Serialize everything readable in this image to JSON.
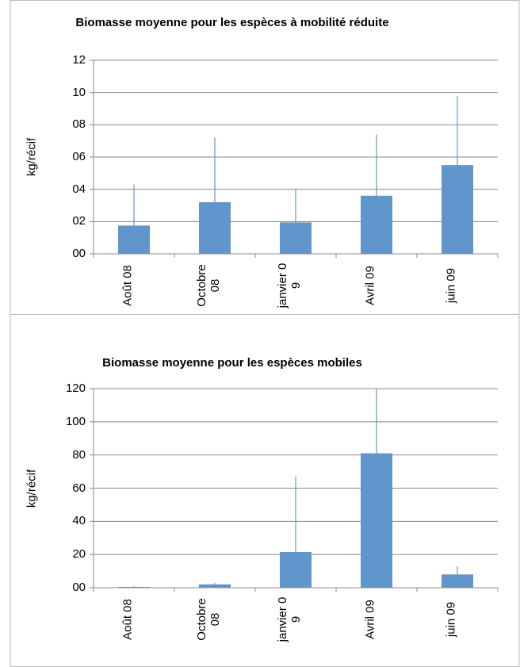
{
  "chart_data": [
    {
      "type": "bar",
      "title": "Biomasse moyenne pour les espèces à mobilité réduite",
      "y_label": "kg/récif",
      "categories": [
        "Août 08",
        "Octobre 08",
        "janvier 09",
        "Avril 09",
        "juin 09"
      ],
      "values": [
        1.75,
        3.2,
        1.95,
        3.6,
        5.5
      ],
      "errors": [
        2.55,
        4.0,
        2.05,
        3.8,
        4.3
      ],
      "color": "#6096cc",
      "ylim": [
        0,
        12
      ],
      "yticks": [
        {
          "value": 0,
          "label": "00"
        },
        {
          "value": 2,
          "label": "02"
        },
        {
          "value": 4,
          "label": "04"
        },
        {
          "value": 6,
          "label": "06"
        },
        {
          "value": 8,
          "label": "08"
        },
        10,
        12
      ],
      "grid": true
    },
    {
      "type": "bar",
      "title": "Biomasse moyenne pour les espèces mobiles",
      "y_label": "kg/récif",
      "categories": [
        "Août 08",
        "Octobre 08",
        "janvier 09",
        "Avril 09",
        "juin 09"
      ],
      "values": [
        0.5,
        2,
        21.5,
        81,
        8
      ],
      "errors": [
        0.5,
        1,
        45.5,
        45,
        5
      ],
      "color": "#6096cc",
      "ylim": [
        0,
        120
      ],
      "yticks": [
        {
          "value": 0,
          "label": "00"
        },
        20,
        40,
        60,
        80,
        100,
        120
      ],
      "grid": true
    }
  ]
}
